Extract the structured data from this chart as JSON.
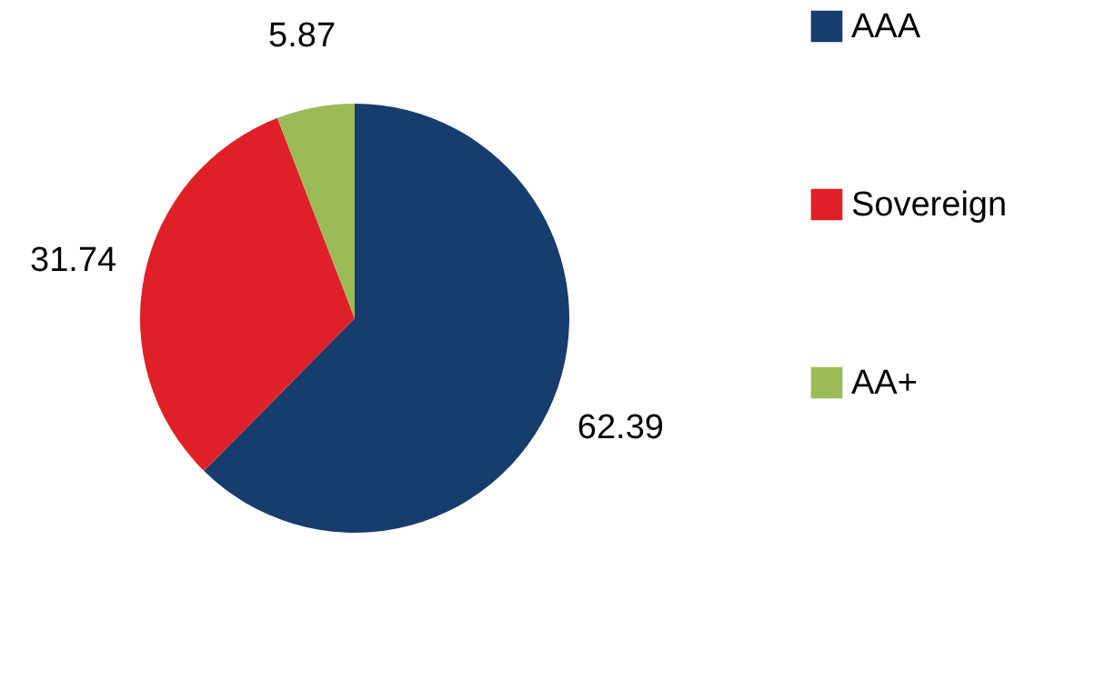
{
  "chart_data": {
    "type": "pie",
    "categories": [
      "AAA",
      "Sovereign",
      "AA+"
    ],
    "values": [
      62.39,
      31.74,
      5.87
    ],
    "colors": [
      "#173d6e",
      "#e02027",
      "#9bbb59"
    ],
    "data_labels": true,
    "legend": "right"
  }
}
